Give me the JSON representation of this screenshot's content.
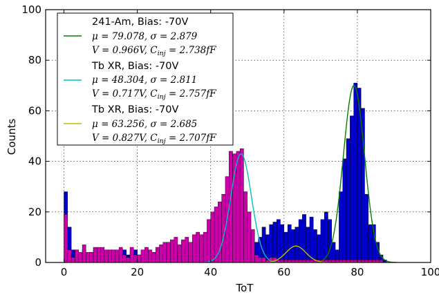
{
  "chart_data": {
    "type": "histogram",
    "xlabel": "ToT",
    "ylabel": "Counts",
    "xlim": [
      -5,
      100
    ],
    "ylim": [
      0,
      100
    ],
    "xticks": [
      "0",
      "20",
      "40",
      "60",
      "80",
      "100"
    ],
    "yticks": [
      "0",
      "20",
      "40",
      "60",
      "80",
      "100"
    ],
    "grid": true,
    "legend_placement": "upper-left",
    "bin_width": 1,
    "histograms": [
      {
        "color": "#0000cc",
        "bin_start": 0,
        "counts": [
          28,
          14,
          5,
          5,
          3,
          5,
          3,
          4,
          5,
          3,
          2,
          3,
          3,
          4,
          3,
          5,
          5,
          3,
          4,
          5,
          3,
          2,
          3,
          3,
          4,
          3,
          2,
          2,
          3,
          3,
          4,
          5,
          4,
          3,
          4,
          3,
          3,
          4,
          5,
          4,
          5,
          5,
          5,
          4,
          5,
          6,
          5,
          5,
          5,
          6,
          7,
          5,
          8,
          10,
          14,
          11,
          15,
          16,
          17,
          15,
          12,
          15,
          13,
          14,
          17,
          19,
          14,
          18,
          13,
          11,
          17,
          20,
          17,
          8,
          5,
          28,
          41,
          49,
          58,
          71,
          69,
          61,
          27,
          15,
          15,
          8,
          3,
          1,
          0
        ]
      },
      {
        "color": "#cc00aa",
        "bin_start": 0,
        "counts": [
          19,
          5,
          2,
          5,
          4,
          7,
          4,
          4,
          6,
          6,
          6,
          5,
          5,
          5,
          5,
          6,
          3,
          2,
          6,
          3,
          3,
          5,
          6,
          5,
          4,
          6,
          7,
          8,
          8,
          9,
          10,
          7,
          9,
          10,
          8,
          11,
          12,
          11,
          12,
          17,
          20,
          22,
          24,
          27,
          34,
          44,
          43,
          44,
          45,
          28,
          20,
          13,
          3,
          2,
          2,
          1,
          2,
          2,
          1,
          1,
          1,
          1,
          1,
          1,
          1,
          1,
          1,
          1,
          1,
          1,
          1,
          1,
          1,
          1,
          1,
          1,
          1,
          1,
          1,
          1,
          1,
          1,
          1,
          1,
          1,
          1,
          1,
          0,
          0
        ]
      }
    ],
    "fits": [
      {
        "color": "#007f00",
        "peak": 70,
        "mu": 79.078,
        "sigma": 2.879,
        "legend_title": "241-Am, Bias: -70V",
        "legend_line1": "μ = 79.078, σ = 2.879",
        "legend_line2": "V = 0.966V, C",
        "legend_sub": "inj",
        "legend_tail": " = 2.738fF"
      },
      {
        "color": "#00bfbf",
        "peak": 43,
        "mu": 48.304,
        "sigma": 2.811,
        "legend_title": "Tb XR, Bias: -70V",
        "legend_line1": "μ = 48.304, σ = 2.811",
        "legend_line2": "V = 0.717V, C",
        "legend_sub": "inj",
        "legend_tail": " = 2.757fF"
      },
      {
        "color": "#bfbf00",
        "peak": 6.5,
        "mu": 63.256,
        "sigma": 2.685,
        "legend_title": "Tb XR, Bias: -70V",
        "legend_line1": "μ = 63.256, σ = 2.685",
        "legend_line2": "V = 0.827V, C",
        "legend_sub": "inj",
        "legend_tail": " = 2.707fF"
      }
    ]
  }
}
